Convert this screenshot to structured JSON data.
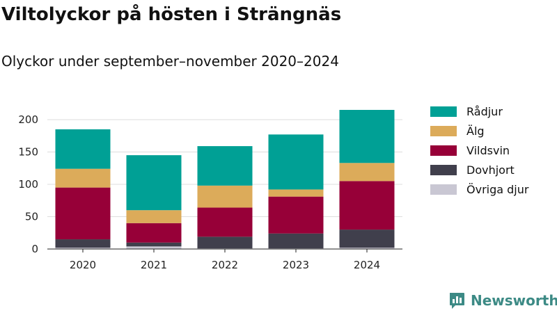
{
  "header": {
    "title": "Viltolyckor på hösten i Strängnäs",
    "subtitle": "Olyckor under september–november 2020–2024"
  },
  "brand": {
    "name": "Newsworthy",
    "icon": "bar-chart-logo-icon",
    "color": "#3c8a85"
  },
  "chart_data": {
    "type": "bar",
    "stacked": true,
    "title": "Viltolyckor på hösten i Strängnäs",
    "subtitle": "Olyckor under september–november 2020–2024",
    "xlabel": "",
    "ylabel": "",
    "ylim": [
      0,
      215
    ],
    "yticks": [
      0,
      50,
      100,
      150,
      200
    ],
    "grid": true,
    "legend_position": "right",
    "categories": [
      "2020",
      "2021",
      "2022",
      "2023",
      "2024"
    ],
    "series": [
      {
        "name": "Övriga djur",
        "color": "#c9c7d3",
        "values": [
          2,
          4,
          1,
          1,
          2
        ]
      },
      {
        "name": "Dovhjort",
        "color": "#403f4c",
        "values": [
          13,
          6,
          18,
          23,
          28
        ]
      },
      {
        "name": "Vildsvin",
        "color": "#970038",
        "values": [
          80,
          30,
          45,
          57,
          75
        ]
      },
      {
        "name": "Älg",
        "color": "#dcab5a",
        "values": [
          29,
          20,
          34,
          11,
          28
        ]
      },
      {
        "name": "Rådjur",
        "color": "#00a095",
        "values": [
          61,
          85,
          61,
          85,
          82
        ]
      }
    ],
    "legend_order": [
      "Rådjur",
      "Älg",
      "Vildsvin",
      "Dovhjort",
      "Övriga djur"
    ]
  }
}
